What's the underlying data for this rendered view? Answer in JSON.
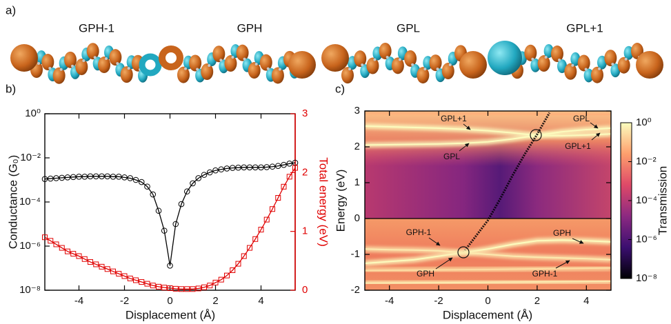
{
  "panel_a": {
    "label": "a)",
    "orbitals": [
      "GPH-1",
      "GPH",
      "GPL",
      "GPL+1"
    ]
  },
  "chart_data": [
    {
      "type": "line",
      "panel_label": "b)",
      "xlabel": "Displacement (Å)",
      "ylabel": "Conductance (G₀)",
      "y2label": "Total energy (eV)",
      "x": [
        -5.5,
        -5.25,
        -5,
        -4.75,
        -4.5,
        -4.25,
        -4,
        -3.75,
        -3.5,
        -3.25,
        -3,
        -2.75,
        -2.5,
        -2.25,
        -2,
        -1.75,
        -1.5,
        -1.25,
        -1,
        -0.75,
        -0.5,
        -0.25,
        0,
        0.25,
        0.5,
        0.75,
        1,
        1.25,
        1.5,
        1.75,
        2,
        2.25,
        2.5,
        2.75,
        3,
        3.25,
        3.5,
        3.75,
        4,
        4.25,
        4.5,
        4.75,
        5,
        5.25,
        5.5
      ],
      "xlim": [
        -5.5,
        5.5
      ],
      "xticks": [
        -4,
        -2,
        0,
        2,
        4
      ],
      "ylim": [
        1e-08,
        1
      ],
      "log_y": true,
      "yticks": [
        {
          "value": 1,
          "label": "10⁰"
        },
        {
          "value": 0.01,
          "label": "10⁻²"
        },
        {
          "value": 0.0001,
          "label": "10⁻⁴"
        },
        {
          "value": 1e-06,
          "label": "10⁻⁶"
        },
        {
          "value": 1e-08,
          "label": "10⁻⁸"
        }
      ],
      "y2lim": [
        0,
        3
      ],
      "y2ticks": [
        0,
        1,
        2,
        3
      ],
      "y2color": "#e00000",
      "series": [
        {
          "color": "#000000",
          "marker": "circle",
          "values": [
            0.0011,
            0.00115,
            0.0012,
            0.00125,
            0.0013,
            0.00135,
            0.0014,
            0.0014,
            0.00145,
            0.00145,
            0.00145,
            0.00145,
            0.0014,
            0.0014,
            0.0013,
            0.0012,
            0.001,
            0.0008,
            0.0005,
            0.00022,
            4e-05,
            5e-06,
            1.3e-07,
            1e-05,
            8e-05,
            0.0003,
            0.0007,
            0.0012,
            0.0017,
            0.0022,
            0.0027,
            0.003,
            0.0033,
            0.0035,
            0.0036,
            0.0037,
            0.0037,
            0.0037,
            0.0037,
            0.0038,
            0.004,
            0.0043,
            0.0048,
            0.0055,
            0.006
          ]
        },
        {
          "color": "#e00000",
          "marker": "square",
          "axis": "y2",
          "values": [
            0.9,
            0.84,
            0.78,
            0.72,
            0.66,
            0.62,
            0.58,
            0.53,
            0.48,
            0.44,
            0.4,
            0.36,
            0.32,
            0.28,
            0.24,
            0.2,
            0.17,
            0.14,
            0.11,
            0.08,
            0.06,
            0.045,
            0.035,
            0.025,
            0.02,
            0.02,
            0.02,
            0.03,
            0.05,
            0.08,
            0.13,
            0.18,
            0.25,
            0.34,
            0.45,
            0.58,
            0.72,
            0.87,
            1.03,
            1.2,
            1.38,
            1.57,
            1.76,
            1.93,
            2.08
          ]
        }
      ]
    },
    {
      "type": "heatmap",
      "panel_label": "c)",
      "xlabel": "Displacement (Å)",
      "ylabel": "Energy (eV)",
      "zlabel": "Transmission",
      "xlim": [
        -5,
        5
      ],
      "xticks": [
        -4,
        -2,
        0,
        2,
        4
      ],
      "ylim": [
        -2,
        3
      ],
      "yticks": [
        -2,
        -1,
        0,
        1,
        2,
        3
      ],
      "zlim": [
        1e-08,
        1
      ],
      "log_z": true,
      "zticks": [
        {
          "value": 1,
          "label": "10⁰"
        },
        {
          "value": 0.01,
          "label": "10⁻²"
        },
        {
          "value": 0.0001,
          "label": "10⁻⁴"
        },
        {
          "value": 1e-06,
          "label": "10⁻⁶"
        },
        {
          "value": 1e-08,
          "label": "10⁻⁸"
        }
      ],
      "colormap": [
        "#000004",
        "#3b0f70",
        "#8c2981",
        "#de4968",
        "#fe9f6d",
        "#fcfdbf"
      ],
      "series": [
        {
          "x": [
            -5,
            -4,
            -3,
            -2,
            -1,
            0,
            1,
            2,
            3,
            4,
            5
          ],
          "values": [
            2.58,
            2.56,
            2.54,
            2.52,
            2.49,
            2.45,
            2.39,
            2.32,
            2.31,
            2.33,
            2.36
          ],
          "level": 1
        },
        {
          "x": [
            -5,
            -4,
            -3,
            -2,
            -1,
            0,
            1,
            2,
            3,
            4,
            5
          ],
          "values": [
            2.05,
            2.06,
            2.07,
            2.08,
            2.1,
            2.14,
            2.22,
            2.32,
            2.42,
            2.48,
            2.52
          ],
          "level": 1
        },
        {
          "x": [
            -5,
            5
          ],
          "values": [
            2.95,
            2.9
          ],
          "level": 0.05
        },
        {
          "x": [
            -1,
            -0.5,
            0,
            0.5,
            1,
            1.5,
            2,
            2.5
          ],
          "values": [
            -0.95,
            -0.5,
            -0.05,
            0.55,
            1.2,
            1.8,
            2.35,
            2.95
          ],
          "level": 1e-08
        },
        {
          "x": [
            -5,
            -4,
            -3,
            -2,
            -1,
            0,
            1,
            2,
            3,
            4,
            5
          ],
          "values": [
            -1.25,
            -1.2,
            -1.15,
            -1.05,
            -0.95,
            -0.85,
            -0.72,
            -0.62,
            -0.6,
            -0.62,
            -0.65
          ],
          "level": 1
        },
        {
          "x": [
            -5,
            -4,
            -3,
            -2,
            -1,
            0,
            1,
            2,
            3,
            4,
            5
          ],
          "values": [
            -0.85,
            -0.87,
            -0.88,
            -0.9,
            -0.95,
            -1,
            -1.05,
            -1.08,
            -1.1,
            -1.12,
            -1.15
          ],
          "level": 0.5
        },
        {
          "x": [
            -5,
            0,
            5
          ],
          "values": [
            -1.45,
            -1.42,
            -1.38
          ],
          "level": 0.3
        },
        {
          "x": [
            -5,
            0,
            5
          ],
          "values": [
            -1.8,
            -1.78,
            -1.75
          ],
          "level": 0.5
        }
      ],
      "annotations": [
        "GPL+1",
        "GPL",
        "GPL",
        "GPL+1",
        "GPH-1",
        "GPH",
        "GPH",
        "GPH-1"
      ]
    }
  ]
}
